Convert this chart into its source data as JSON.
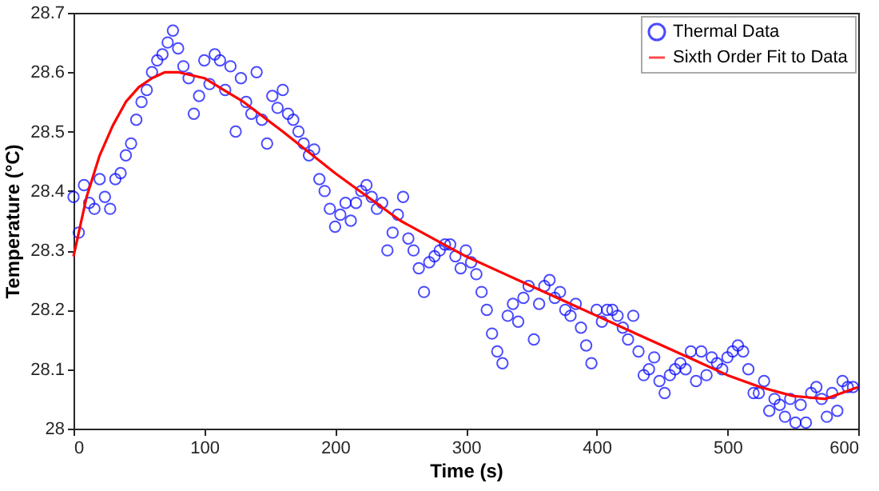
{
  "chart_data": {
    "type": "scatter",
    "xlabel": "Time (s)",
    "ylabel": "Temperature (°C)",
    "xlim": [
      0,
      600
    ],
    "xticks": [
      0,
      100,
      200,
      300,
      400,
      500,
      600
    ],
    "ylim": [
      28,
      28.7
    ],
    "yticks": [
      28,
      28.1,
      28.2,
      28.3,
      28.4,
      28.5,
      28.6,
      28.7
    ],
    "grid": false,
    "legend": "top right",
    "marker": "circle",
    "series": [
      {
        "name": "Thermal Data",
        "color": "#0000ff",
        "type": "scatter",
        "marker": "circle",
        "x": [
          0,
          4,
          8,
          12,
          16,
          20,
          24,
          28,
          32,
          36,
          40,
          44,
          48,
          52,
          56,
          60,
          64,
          68,
          72,
          76,
          80,
          84,
          88,
          92,
          96,
          100,
          104,
          108,
          112,
          116,
          120,
          124,
          128,
          132,
          136,
          140,
          144,
          148,
          152,
          156,
          160,
          164,
          168,
          172,
          176,
          180,
          184,
          188,
          192,
          196,
          200,
          204,
          208,
          212,
          216,
          220,
          224,
          228,
          232,
          236,
          240,
          244,
          248,
          252,
          256,
          260,
          264,
          268,
          272,
          276,
          280,
          284,
          288,
          292,
          296,
          300,
          304,
          308,
          312,
          316,
          320,
          324,
          328,
          332,
          336,
          340,
          344,
          348,
          352,
          356,
          360,
          364,
          368,
          372,
          376,
          380,
          384,
          388,
          392,
          396,
          400,
          404,
          408,
          412,
          416,
          420,
          424,
          428,
          432,
          436,
          440,
          444,
          448,
          452,
          456,
          460,
          464,
          468,
          472,
          476,
          480,
          484,
          488,
          492,
          496,
          500,
          504,
          508,
          512,
          516,
          520,
          524,
          528,
          532,
          536,
          540,
          544,
          548,
          552,
          556,
          560,
          564,
          568,
          572,
          576,
          580,
          584,
          588,
          592,
          596
        ],
        "values": [
          28.39,
          28.33,
          28.41,
          28.38,
          28.37,
          28.42,
          28.39,
          28.37,
          28.42,
          28.43,
          28.46,
          28.48,
          28.52,
          28.55,
          28.57,
          28.6,
          28.62,
          28.63,
          28.65,
          28.67,
          28.64,
          28.61,
          28.59,
          28.53,
          28.56,
          28.62,
          28.58,
          28.63,
          28.62,
          28.57,
          28.61,
          28.5,
          28.59,
          28.55,
          28.53,
          28.6,
          28.52,
          28.48,
          28.56,
          28.54,
          28.57,
          28.53,
          28.52,
          28.5,
          28.48,
          28.46,
          28.47,
          28.42,
          28.4,
          28.37,
          28.34,
          28.36,
          28.38,
          28.35,
          28.38,
          28.4,
          28.41,
          28.39,
          28.37,
          28.38,
          28.3,
          28.33,
          28.36,
          28.39,
          28.32,
          28.3,
          28.27,
          28.23,
          28.28,
          28.29,
          28.3,
          28.31,
          28.31,
          28.29,
          28.27,
          28.3,
          28.28,
          28.26,
          28.23,
          28.2,
          28.16,
          28.13,
          28.11,
          28.19,
          28.21,
          28.18,
          28.22,
          28.24,
          28.15,
          28.21,
          28.24,
          28.25,
          28.22,
          28.23,
          28.2,
          28.19,
          28.21,
          28.17,
          28.14,
          28.11,
          28.2,
          28.18,
          28.2,
          28.2,
          28.19,
          28.17,
          28.15,
          28.19,
          28.13,
          28.09,
          28.1,
          28.12,
          28.08,
          28.06,
          28.09,
          28.1,
          28.11,
          28.1,
          28.13,
          28.08,
          28.13,
          28.09,
          28.12,
          28.11,
          28.1,
          28.12,
          28.13,
          28.14,
          28.13,
          28.1,
          28.06,
          28.06,
          28.08,
          28.03,
          28.05,
          28.04,
          28.02,
          28.05,
          28.01,
          28.04,
          28.01,
          28.06,
          28.07,
          28.05,
          28.02,
          28.06,
          28.03,
          28.08,
          28.07,
          28.07
        ]
      },
      {
        "name": "Sixth Order Fit to Data",
        "color": "#ff0000",
        "type": "line",
        "marker": "none",
        "line_style": "solid",
        "x": [
          0,
          10,
          20,
          30,
          40,
          50,
          60,
          70,
          80,
          90,
          100,
          115,
          130,
          145,
          160,
          180,
          200,
          225,
          250,
          275,
          300,
          325,
          350,
          375,
          400,
          425,
          450,
          475,
          500,
          525,
          550,
          575,
          600
        ],
        "values": [
          28.29,
          28.39,
          28.46,
          28.51,
          28.55,
          28.575,
          28.59,
          28.6,
          28.6,
          28.595,
          28.59,
          28.57,
          28.55,
          28.525,
          28.5,
          28.465,
          28.43,
          28.39,
          28.35,
          28.32,
          28.29,
          28.265,
          28.24,
          28.215,
          28.19,
          28.165,
          28.14,
          28.115,
          28.09,
          28.07,
          28.055,
          28.05,
          28.07
        ]
      }
    ]
  }
}
